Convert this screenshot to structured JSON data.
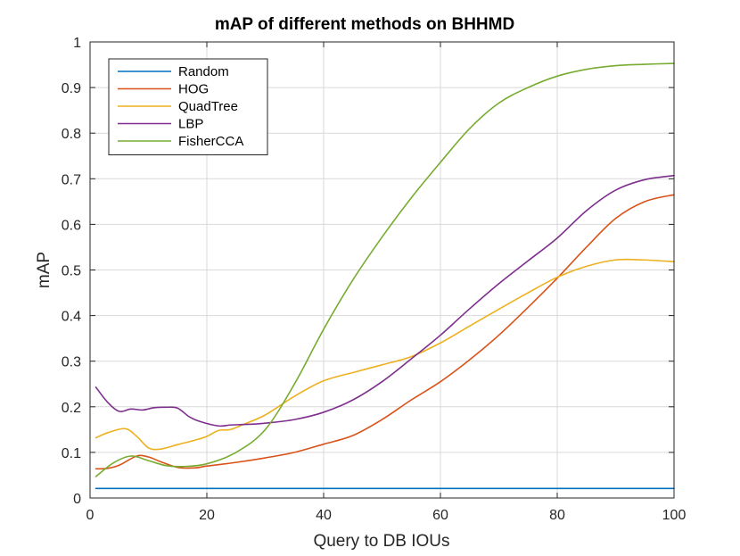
{
  "chart_data": {
    "type": "line",
    "title": "mAP of different methods on BHHMD",
    "xlabel": "Query to DB IOUs",
    "ylabel": "mAP",
    "xlim": [
      0,
      100
    ],
    "ylim": [
      0,
      1
    ],
    "xticks": [
      0,
      20,
      40,
      60,
      80,
      100
    ],
    "yticks": [
      0,
      0.1,
      0.2,
      0.3,
      0.4,
      0.5,
      0.6,
      0.7,
      0.8,
      0.9,
      1
    ],
    "xtick_labels": [
      "0",
      "20",
      "40",
      "60",
      "80",
      "100"
    ],
    "ytick_labels": [
      "0",
      "0.1",
      "0.2",
      "0.3",
      "0.4",
      "0.5",
      "0.6",
      "0.7",
      "0.8",
      "0.9",
      "1"
    ],
    "grid": true,
    "legend_position": "top-left",
    "series": [
      {
        "name": "Random",
        "color": "#0072bd",
        "x": [
          1,
          10,
          20,
          30,
          40,
          50,
          60,
          70,
          80,
          90,
          100
        ],
        "y": [
          0.021,
          0.021,
          0.021,
          0.021,
          0.021,
          0.021,
          0.021,
          0.021,
          0.021,
          0.021,
          0.021
        ]
      },
      {
        "name": "HOG",
        "color": "#d95319",
        "x": [
          1,
          3,
          5,
          8,
          10,
          12,
          15,
          18,
          20,
          25,
          30,
          35,
          40,
          45,
          50,
          55,
          60,
          65,
          70,
          75,
          80,
          85,
          90,
          95,
          100
        ],
        "y": [
          0.064,
          0.065,
          0.072,
          0.092,
          0.09,
          0.08,
          0.067,
          0.066,
          0.07,
          0.078,
          0.088,
          0.1,
          0.118,
          0.137,
          0.172,
          0.215,
          0.255,
          0.303,
          0.357,
          0.418,
          0.482,
          0.55,
          0.613,
          0.65,
          0.665
        ]
      },
      {
        "name": "QuadTree",
        "color": "#edb120",
        "x": [
          1,
          3,
          6,
          8,
          10,
          12,
          15,
          18,
          20,
          22,
          24,
          26,
          30,
          35,
          40,
          45,
          50,
          55,
          60,
          65,
          70,
          75,
          80,
          85,
          90,
          95,
          100
        ],
        "y": [
          0.132,
          0.143,
          0.152,
          0.135,
          0.11,
          0.107,
          0.117,
          0.127,
          0.135,
          0.148,
          0.15,
          0.16,
          0.182,
          0.223,
          0.257,
          0.275,
          0.292,
          0.31,
          0.34,
          0.377,
          0.414,
          0.45,
          0.484,
          0.508,
          0.522,
          0.522,
          0.518
        ]
      },
      {
        "name": "LBP",
        "color": "#7e2f8e",
        "x": [
          1,
          3,
          5,
          7,
          9,
          11,
          13,
          15,
          17,
          19,
          22,
          24,
          26,
          28,
          30,
          35,
          40,
          45,
          50,
          55,
          60,
          65,
          70,
          75,
          80,
          85,
          90,
          95,
          100
        ],
        "y": [
          0.243,
          0.21,
          0.19,
          0.195,
          0.193,
          0.198,
          0.199,
          0.197,
          0.178,
          0.167,
          0.158,
          0.16,
          0.161,
          0.162,
          0.164,
          0.172,
          0.188,
          0.215,
          0.255,
          0.305,
          0.357,
          0.415,
          0.47,
          0.52,
          0.57,
          0.63,
          0.675,
          0.698,
          0.707
        ]
      },
      {
        "name": "FisherCCA",
        "color": "#77ac30",
        "x": [
          1,
          4,
          7,
          10,
          13,
          16,
          20,
          25,
          30,
          35,
          40,
          45,
          50,
          55,
          60,
          65,
          70,
          75,
          80,
          85,
          90,
          95,
          100
        ],
        "y": [
          0.047,
          0.077,
          0.092,
          0.082,
          0.071,
          0.069,
          0.075,
          0.1,
          0.15,
          0.25,
          0.37,
          0.478,
          0.572,
          0.658,
          0.736,
          0.81,
          0.866,
          0.9,
          0.925,
          0.94,
          0.948,
          0.951,
          0.953
        ]
      }
    ]
  }
}
